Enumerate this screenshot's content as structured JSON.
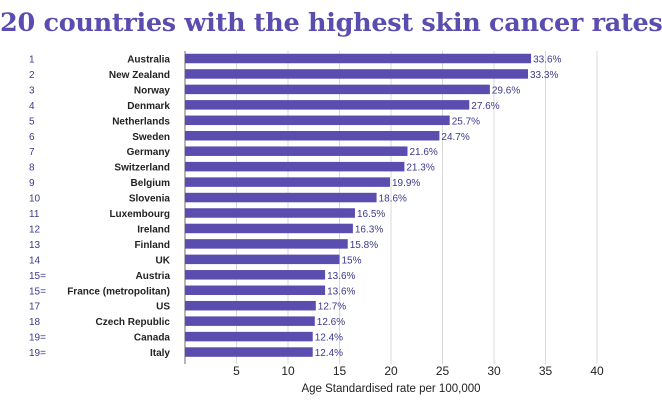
{
  "chart_data": {
    "type": "bar",
    "orientation": "horizontal",
    "title": "20 countries with the highest skin cancer rates",
    "xlabel": "Age Standardised rate per 100,000",
    "xlim": [
      0,
      40
    ],
    "xticks": [
      "5",
      "10",
      "15",
      "20",
      "25",
      "30",
      "35",
      "40"
    ],
    "grid": true,
    "bar_color": "#5b4cb0",
    "title_color": "#5b4cb0",
    "ranks": [
      "1",
      "2",
      "3",
      "4",
      "5",
      "6",
      "7",
      "8",
      "9",
      "10",
      "11",
      "12",
      "13",
      "14",
      "15=",
      "15=",
      "17",
      "18",
      "19=",
      "19="
    ],
    "categories": [
      "Australia",
      "New Zealand",
      "Norway",
      "Denmark",
      "Netherlands",
      "Sweden",
      "Germany",
      "Switzerland",
      "Belgium",
      "Slovenia",
      "Luxembourg",
      "Ireland",
      "Finland",
      "UK",
      "Austria",
      "France (metropolitan)",
      "US",
      "Czech Republic",
      "Canada",
      "Italy"
    ],
    "values": [
      33.6,
      33.3,
      29.6,
      27.6,
      25.7,
      24.7,
      21.6,
      21.3,
      19.9,
      18.6,
      16.5,
      16.3,
      15.8,
      15,
      13.6,
      13.6,
      12.7,
      12.6,
      12.4,
      12.4
    ],
    "value_labels": [
      "33.6%",
      "33.3%",
      "29.6%",
      "27.6%",
      "25.7%",
      "24.7%",
      "21.6%",
      "21.3%",
      "19.9%",
      "18.6%",
      "16.5%",
      "16.3%",
      "15.8%",
      "15%",
      "13.6%",
      "13.6%",
      "12.7%",
      "12.6%",
      "12.4%",
      "12.4%"
    ]
  }
}
